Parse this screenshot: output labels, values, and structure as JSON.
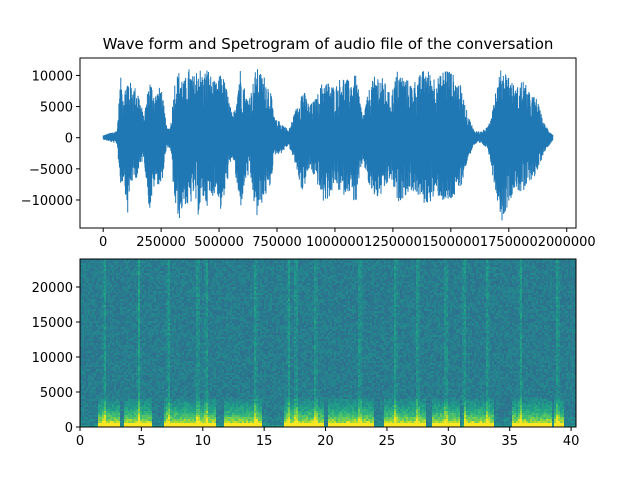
{
  "chart_data": [
    {
      "type": "line",
      "title": "Wave form and Spetrogram of audio file of the conversation",
      "xlabel": "",
      "ylabel": "",
      "xlim": [
        -100000,
        2040000
      ],
      "ylim": [
        -14500,
        12800
      ],
      "x_ticks": [
        0,
        250000,
        500000,
        750000,
        1000000,
        1250000,
        1500000,
        1750000,
        2000000
      ],
      "x_tick_labels": [
        "0",
        "250000",
        "500000",
        "750000",
        "1000000",
        "1250000",
        "1500000",
        "1750000",
        "2000000"
      ],
      "y_ticks": [
        -10000,
        -5000,
        0,
        5000,
        10000
      ],
      "y_tick_labels": [
        "−10000",
        "−5000",
        "0",
        "5000",
        "10000"
      ],
      "grid": false,
      "line_color": "#1f77b4",
      "samples": 1940000,
      "series": [
        {
          "envelope_x": [
            0,
            60000,
            75000,
            90000,
            105000,
            120000,
            150000,
            175000,
            200000,
            225000,
            250000,
            275000,
            290000,
            310000,
            330000,
            350000,
            370000,
            390000,
            410000,
            430000,
            450000,
            470000,
            490000,
            510000,
            530000,
            560000,
            590000,
            620000,
            640000,
            660000,
            680000,
            700000,
            720000,
            740000,
            770000,
            800000,
            830000,
            860000,
            890000,
            920000,
            950000,
            980000,
            1000000,
            1030000,
            1060000,
            1090000,
            1120000,
            1150000,
            1180000,
            1210000,
            1240000,
            1270000,
            1300000,
            1330000,
            1360000,
            1390000,
            1420000,
            1450000,
            1480000,
            1510000,
            1540000,
            1570000,
            1600000,
            1630000,
            1660000,
            1690000,
            1720000,
            1750000,
            1780000,
            1810000,
            1840000,
            1870000,
            1900000,
            1940000
          ],
          "envelope_top": [
            400,
            1200,
            9800,
            7500,
            10000,
            8800,
            7800,
            3500,
            9600,
            7200,
            8500,
            1500,
            1800,
            9600,
            11000,
            9200,
            11200,
            9800,
            12000,
            10200,
            11500,
            9500,
            8800,
            10800,
            8400,
            3200,
            11600,
            6500,
            7800,
            11400,
            10500,
            9800,
            8200,
            3000,
            2500,
            1200,
            4500,
            8200,
            5200,
            6500,
            9500,
            8800,
            8200,
            10200,
            9200,
            10200,
            3500,
            8200,
            10600,
            9400,
            6800,
            11000,
            9800,
            8800,
            9800,
            11400,
            10200,
            9800,
            11800,
            10200,
            8600,
            4200,
            1200,
            1000,
            1800,
            7500,
            11500,
            10300,
            7800,
            9600,
            7200,
            6400,
            2500,
            500
          ],
          "envelope_bottom": [
            -300,
            -1000,
            -8000,
            -6500,
            -12800,
            -7500,
            -6200,
            -3000,
            -12000,
            -7000,
            -8200,
            -1500,
            -1800,
            -11500,
            -13200,
            -10500,
            -11800,
            -9200,
            -12500,
            -10000,
            -11000,
            -9500,
            -8500,
            -12500,
            -8000,
            -3000,
            -12000,
            -6000,
            -7500,
            -13500,
            -11000,
            -9500,
            -8000,
            -2800,
            -2500,
            -1200,
            -4500,
            -9000,
            -5000,
            -7000,
            -10500,
            -9500,
            -7500,
            -9500,
            -8500,
            -11000,
            -3500,
            -8500,
            -10000,
            -9000,
            -6500,
            -10500,
            -9500,
            -8500,
            -9500,
            -11000,
            -10000,
            -9500,
            -11000,
            -10000,
            -8500,
            -4000,
            -1200,
            -1000,
            -1800,
            -8000,
            -13500,
            -10500,
            -8000,
            -9500,
            -7000,
            -6000,
            -2500,
            -400
          ]
        }
      ]
    },
    {
      "type": "heatmap",
      "title": "",
      "xlabel": "",
      "ylabel": "",
      "xlim": [
        0,
        40.4
      ],
      "ylim": [
        0,
        24000
      ],
      "x_ticks": [
        0,
        5,
        10,
        15,
        20,
        25,
        30,
        35,
        40
      ],
      "x_tick_labels": [
        "0",
        "5",
        "10",
        "15",
        "20",
        "25",
        "30",
        "35",
        "40"
      ],
      "y_ticks": [
        0,
        5000,
        10000,
        15000,
        20000
      ],
      "y_tick_labels": [
        "0",
        "5000",
        "10000",
        "15000",
        "20000"
      ],
      "grid": false,
      "colormap": "viridis",
      "colors": {
        "low": "#3a5f8a",
        "mid": "#21908d",
        "high": "#5ec962",
        "peak": "#fde725"
      },
      "speech_segments_s": [
        [
          1.4,
          3.2
        ],
        [
          3.6,
          5.8
        ],
        [
          6.8,
          11.0
        ],
        [
          11.8,
          14.8
        ],
        [
          16.6,
          19.8
        ],
        [
          20.2,
          24.0
        ],
        [
          24.8,
          28.2
        ],
        [
          28.6,
          31.0
        ],
        [
          31.2,
          33.8
        ],
        [
          35.2,
          38.4
        ],
        [
          38.6,
          39.4
        ]
      ],
      "strong_bands_s": [
        2.0,
        4.8,
        7.2,
        9.6,
        10.3,
        14.3,
        17.0,
        17.6,
        19.2,
        22.8,
        25.7,
        27.5,
        29.8,
        31.3,
        33.2,
        35.9,
        38.9
      ]
    }
  ]
}
